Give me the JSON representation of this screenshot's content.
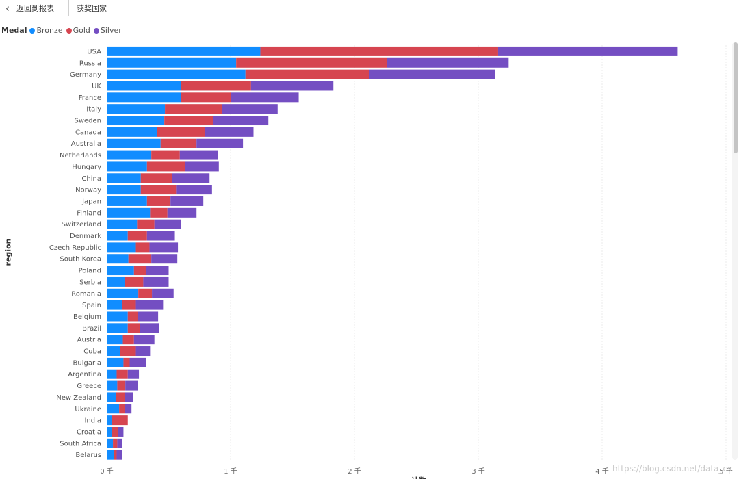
{
  "header": {
    "back_label": "返回到报表",
    "back_icon": "chevron-left-icon",
    "title": "获奖国家"
  },
  "legend": {
    "title": "Medal",
    "items": [
      {
        "label": "Bronze",
        "color": "#118dff"
      },
      {
        "label": "Gold",
        "color": "#d64550"
      },
      {
        "label": "Silver",
        "color": "#744ec2"
      }
    ]
  },
  "axis": {
    "ylabel": "region",
    "xlabel_partial": "计数",
    "xticks": [
      "0 千",
      "1 千",
      "2 千",
      "3 千",
      "4 千",
      "5 千"
    ]
  },
  "watermark": "https://blog.csdn.net/data_cs",
  "chart_data": {
    "type": "bar",
    "orientation": "horizontal",
    "stacked": true,
    "xlim": [
      0,
      5000
    ],
    "ylabel": "region",
    "categories": [
      "USA",
      "Russia",
      "Germany",
      "UK",
      "France",
      "Italy",
      "Sweden",
      "Canada",
      "Australia",
      "Netherlands",
      "Hungary",
      "China",
      "Norway",
      "Japan",
      "Finland",
      "Switzerland",
      "Denmark",
      "Czech Republic",
      "South Korea",
      "Poland",
      "Serbia",
      "Romania",
      "Spain",
      "Belgium",
      "Brazil",
      "Austria",
      "Cuba",
      "Bulgaria",
      "Argentina",
      "Greece",
      "New Zealand",
      "Ukraine",
      "India",
      "Croatia",
      "South Africa",
      "Belarus"
    ],
    "series": [
      {
        "name": "Bronze",
        "color": "#118dff",
        "values": [
          1240,
          1045,
          1120,
          600,
          600,
          470,
          465,
          405,
          435,
          360,
          325,
          275,
          275,
          325,
          350,
          245,
          170,
          235,
          175,
          220,
          145,
          255,
          125,
          170,
          170,
          130,
          110,
          135,
          80,
          85,
          75,
          100,
          40,
          40,
          50,
          60
        ]
      },
      {
        "name": "Gold",
        "color": "#d64550",
        "values": [
          1920,
          1215,
          1000,
          565,
          405,
          460,
          395,
          385,
          290,
          230,
          305,
          255,
          285,
          190,
          140,
          140,
          155,
          110,
          185,
          100,
          150,
          110,
          110,
          80,
          100,
          90,
          125,
          50,
          90,
          65,
          70,
          45,
          130,
          50,
          35,
          20
        ]
      },
      {
        "name": "Silver",
        "color": "#744ec2",
        "values": [
          1450,
          985,
          1015,
          665,
          545,
          450,
          445,
          395,
          375,
          310,
          275,
          300,
          290,
          265,
          235,
          215,
          225,
          230,
          210,
          180,
          205,
          175,
          220,
          165,
          150,
          165,
          115,
          130,
          90,
          100,
          65,
          55,
          0,
          45,
          40,
          45
        ]
      }
    ]
  }
}
